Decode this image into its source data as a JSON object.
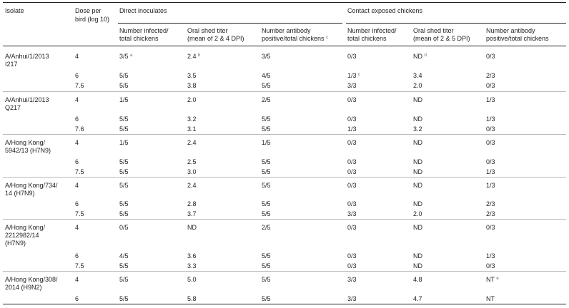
{
  "headers": {
    "isolate": "Isolate",
    "dose_line1": "Dose per",
    "dose_line2": "bird (log 10)",
    "direct_group": "Direct inoculates",
    "contact_group": "Contact exposed chickens",
    "di_infected_1": "Number infected/",
    "di_infected_2": "total chickens",
    "di_titer_1": "Oral shed titer",
    "di_titer_2": "(mean of 2 & 4 DPI)",
    "di_ab_1": "Number antibody",
    "di_ab_2": "positive/total chickens",
    "di_ab_note": "c",
    "ce_infected_1": "Number infected/",
    "ce_infected_2": "total chickens",
    "ce_titer_1": "Oral shed titer",
    "ce_titer_2": "(mean of 2 & 5 DPI)",
    "ce_ab_1": "Number antibody",
    "ce_ab_2": "positive/total chickens"
  },
  "rows": [
    {
      "iso": [
        "A/Anhui/1/2013",
        "I217"
      ],
      "dose": "4",
      "di_inf": "3/5",
      "di_inf_note": "a",
      "di_titer": "2.4",
      "di_titer_note": "b",
      "di_ab": "3/5",
      "ce_inf": "0/3",
      "ce_inf_note": "",
      "ce_titer": "ND",
      "ce_titer_note": "d",
      "ce_ab": "0/3",
      "ce_ab_note": ""
    },
    {
      "iso": [],
      "dose": "6",
      "di_inf": "5/5",
      "di_inf_note": "",
      "di_titer": "3.5",
      "di_titer_note": "",
      "di_ab": "4/5",
      "ce_inf": "1/3",
      "ce_inf_note": "c",
      "ce_titer": "3.4",
      "ce_titer_note": "",
      "ce_ab": "2/3",
      "ce_ab_note": ""
    },
    {
      "iso": [],
      "dose": "7.6",
      "di_inf": "5/5",
      "di_inf_note": "",
      "di_titer": "3.8",
      "di_titer_note": "",
      "di_ab": "5/5",
      "ce_inf": "3/3",
      "ce_inf_note": "",
      "ce_titer": "2.0",
      "ce_titer_note": "",
      "ce_ab": "0/3",
      "ce_ab_note": ""
    },
    {
      "iso": [
        "A/Anhui/1/2013",
        "Q217"
      ],
      "dose": "4",
      "di_inf": "1/5",
      "di_inf_note": "",
      "di_titer": "2.0",
      "di_titer_note": "",
      "di_ab": "2/5",
      "ce_inf": "0/3",
      "ce_inf_note": "",
      "ce_titer": "ND",
      "ce_titer_note": "",
      "ce_ab": "1/3",
      "ce_ab_note": ""
    },
    {
      "iso": [],
      "dose": "6",
      "di_inf": "5/5",
      "di_inf_note": "",
      "di_titer": "3.2",
      "di_titer_note": "",
      "di_ab": "5/5",
      "ce_inf": "0/3",
      "ce_inf_note": "",
      "ce_titer": "ND",
      "ce_titer_note": "",
      "ce_ab": "1/3",
      "ce_ab_note": ""
    },
    {
      "iso": [],
      "dose": "7.6",
      "di_inf": "5/5",
      "di_inf_note": "",
      "di_titer": "3.1",
      "di_titer_note": "",
      "di_ab": "5/5",
      "ce_inf": "1/3",
      "ce_inf_note": "",
      "ce_titer": "3.2",
      "ce_titer_note": "",
      "ce_ab": "0/3",
      "ce_ab_note": ""
    },
    {
      "iso": [
        "A/Hong Kong/",
        "5942/13 (H7N9)"
      ],
      "dose": "4",
      "di_inf": "1/5",
      "di_inf_note": "",
      "di_titer": "2.4",
      "di_titer_note": "",
      "di_ab": "1/5",
      "ce_inf": "0/3",
      "ce_inf_note": "",
      "ce_titer": "ND",
      "ce_titer_note": "",
      "ce_ab": "0/3",
      "ce_ab_note": ""
    },
    {
      "iso": [],
      "dose": "6",
      "di_inf": "5/5",
      "di_inf_note": "",
      "di_titer": "2.5",
      "di_titer_note": "",
      "di_ab": "5/5",
      "ce_inf": "0/3",
      "ce_inf_note": "",
      "ce_titer": "ND",
      "ce_titer_note": "",
      "ce_ab": "0/3",
      "ce_ab_note": ""
    },
    {
      "iso": [],
      "dose": "7.5",
      "di_inf": "5/5",
      "di_inf_note": "",
      "di_titer": "3.0",
      "di_titer_note": "",
      "di_ab": "5/5",
      "ce_inf": "0/3",
      "ce_inf_note": "",
      "ce_titer": "ND",
      "ce_titer_note": "",
      "ce_ab": "1/3",
      "ce_ab_note": ""
    },
    {
      "iso": [
        "A/Hong Kong/734/",
        "14 (H7N9)"
      ],
      "dose": "4",
      "di_inf": "5/5",
      "di_inf_note": "",
      "di_titer": "2.4",
      "di_titer_note": "",
      "di_ab": "5/5",
      "ce_inf": "0/3",
      "ce_inf_note": "",
      "ce_titer": "ND",
      "ce_titer_note": "",
      "ce_ab": "1/3",
      "ce_ab_note": ""
    },
    {
      "iso": [],
      "dose": "6",
      "di_inf": "5/5",
      "di_inf_note": "",
      "di_titer": "2.8",
      "di_titer_note": "",
      "di_ab": "5/5",
      "ce_inf": "0/3",
      "ce_inf_note": "",
      "ce_titer": "ND",
      "ce_titer_note": "",
      "ce_ab": "2/3",
      "ce_ab_note": ""
    },
    {
      "iso": [],
      "dose": "7.5",
      "di_inf": "5/5",
      "di_inf_note": "",
      "di_titer": "3.7",
      "di_titer_note": "",
      "di_ab": "5/5",
      "ce_inf": "3/3",
      "ce_inf_note": "",
      "ce_titer": "2.0",
      "ce_titer_note": "",
      "ce_ab": "2/3",
      "ce_ab_note": ""
    },
    {
      "iso": [
        "A/Hong Kong/",
        "2212982/14",
        "(H7N9)"
      ],
      "dose": "4",
      "di_inf": "0/5",
      "di_inf_note": "",
      "di_titer": "ND",
      "di_titer_note": "",
      "di_ab": "2/5",
      "ce_inf": "0/3",
      "ce_inf_note": "",
      "ce_titer": "ND",
      "ce_titer_note": "",
      "ce_ab": "0/3",
      "ce_ab_note": ""
    },
    {
      "iso": [],
      "dose": "6",
      "di_inf": "4/5",
      "di_inf_note": "",
      "di_titer": "3.6",
      "di_titer_note": "",
      "di_ab": "5/5",
      "ce_inf": "0/3",
      "ce_inf_note": "",
      "ce_titer": "ND",
      "ce_titer_note": "",
      "ce_ab": "1/3",
      "ce_ab_note": ""
    },
    {
      "iso": [],
      "dose": "7.5",
      "di_inf": "5/5",
      "di_inf_note": "",
      "di_titer": "3.3",
      "di_titer_note": "",
      "di_ab": "5/5",
      "ce_inf": "0/3",
      "ce_inf_note": "",
      "ce_titer": "ND",
      "ce_titer_note": "",
      "ce_ab": "0/3",
      "ce_ab_note": ""
    },
    {
      "iso": [
        "A/Hong Kong/308/",
        "2014 (H9N2)"
      ],
      "dose": "4",
      "di_inf": "5/5",
      "di_inf_note": "",
      "di_titer": "5.0",
      "di_titer_note": "",
      "di_ab": "5/5",
      "ce_inf": "3/3",
      "ce_inf_note": "",
      "ce_titer": "4.8",
      "ce_titer_note": "",
      "ce_ab": "NT",
      "ce_ab_note": "e"
    },
    {
      "iso": [],
      "dose": "6",
      "di_inf": "5/5",
      "di_inf_note": "",
      "di_titer": "5.8",
      "di_titer_note": "",
      "di_ab": "5/5",
      "ce_inf": "3/3",
      "ce_inf_note": "",
      "ce_titer": "4.7",
      "ce_titer_note": "",
      "ce_ab": "NT",
      "ce_ab_note": ""
    }
  ]
}
